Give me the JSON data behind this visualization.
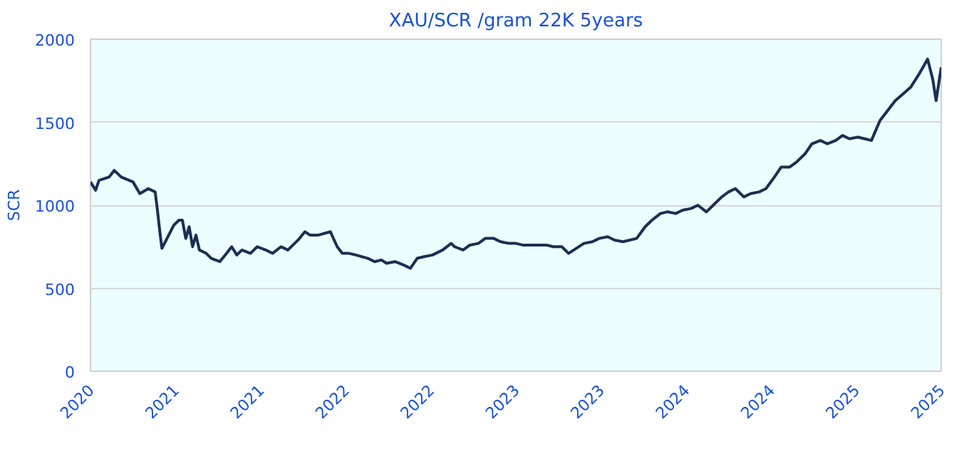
{
  "chart_data": {
    "type": "line",
    "title": "XAU/SCR /gram 22K 5years",
    "ylabel": "SCR",
    "x": [
      2020.2,
      2020.23,
      2020.25,
      2020.31,
      2020.34,
      2020.38,
      2020.45,
      2020.49,
      2020.54,
      2020.58,
      2020.59,
      2020.61,
      2020.62,
      2020.65,
      2020.69,
      2020.72,
      2020.74,
      2020.76,
      2020.78,
      2020.8,
      2020.82,
      2020.84,
      2020.88,
      2020.91,
      2020.96,
      2021.0,
      2021.03,
      2021.06,
      2021.09,
      2021.14,
      2021.18,
      2021.23,
      2021.27,
      2021.32,
      2021.36,
      2021.42,
      2021.46,
      2021.49,
      2021.54,
      2021.61,
      2021.65,
      2021.68,
      2021.72,
      2021.76,
      2021.83,
      2021.87,
      2021.91,
      2021.94,
      2021.99,
      2022.04,
      2022.08,
      2022.12,
      2022.16,
      2022.21,
      2022.27,
      2022.32,
      2022.34,
      2022.39,
      2022.43,
      2022.48,
      2022.52,
      2022.57,
      2022.61,
      2022.66,
      2022.7,
      2022.74,
      2022.79,
      2022.83,
      2022.88,
      2022.92,
      2022.97,
      2023.01,
      2023.1,
      2023.15,
      2023.19,
      2023.24,
      2023.28,
      2023.33,
      2023.41,
      2023.46,
      2023.5,
      2023.55,
      2023.59,
      2023.64,
      2023.68,
      2023.73,
      2023.77,
      2023.82,
      2023.86,
      2023.91,
      2023.95,
      2023.99,
      2024.04,
      2024.08,
      2024.13,
      2024.17,
      2024.22,
      2024.26,
      2024.31,
      2024.35,
      2024.4,
      2024.44,
      2024.49,
      2024.53,
      2024.58,
      2024.62,
      2024.66,
      2024.71,
      2024.75,
      2024.79,
      2024.84,
      2024.93,
      2025.02,
      2025.07,
      2025.12,
      2025.15,
      2025.17,
      2025.2
    ],
    "series": [
      {
        "color": "#1b2f52",
        "values": [
          1140,
          1090,
          1150,
          1170,
          1210,
          1170,
          1140,
          1070,
          1100,
          1080,
          1000,
          820,
          740,
          800,
          880,
          910,
          910,
          800,
          870,
          750,
          820,
          730,
          710,
          680,
          660,
          710,
          750,
          700,
          730,
          710,
          750,
          730,
          710,
          750,
          730,
          790,
          840,
          820,
          820,
          840,
          750,
          710,
          710,
          700,
          680,
          660,
          670,
          650,
          660,
          640,
          620,
          680,
          690,
          700,
          730,
          770,
          750,
          730,
          760,
          770,
          800,
          800,
          780,
          770,
          770,
          760,
          760,
          760,
          760,
          750,
          750,
          710,
          770,
          780,
          800,
          810,
          790,
          780,
          800,
          870,
          910,
          950,
          960,
          950,
          970,
          980,
          1000,
          960,
          1000,
          1050,
          1080,
          1100,
          1050,
          1070,
          1080,
          1100,
          1170,
          1230,
          1230,
          1260,
          1310,
          1370,
          1390,
          1370,
          1390,
          1420,
          1400,
          1410,
          1400,
          1390,
          1510,
          1630,
          1710,
          1790,
          1880,
          1760,
          1630,
          1830
        ]
      }
    ],
    "xlim": [
      2020.2,
      2025.2
    ],
    "xticks": [
      {
        "value": 2020.2,
        "label": "2020"
      },
      {
        "value": 2020.7,
        "label": "2021"
      },
      {
        "value": 2021.2,
        "label": "2021"
      },
      {
        "value": 2021.7,
        "label": "2022"
      },
      {
        "value": 2022.2,
        "label": "2022"
      },
      {
        "value": 2022.7,
        "label": "2023"
      },
      {
        "value": 2023.2,
        "label": "2023"
      },
      {
        "value": 2023.7,
        "label": "2024"
      },
      {
        "value": 2024.2,
        "label": "2024"
      },
      {
        "value": 2024.7,
        "label": "2025"
      },
      {
        "value": 2025.2,
        "label": "2025"
      }
    ],
    "ylim": [
      0,
      2000
    ],
    "yticks": [
      0,
      500,
      1000,
      1500,
      2000
    ],
    "grid": "y"
  }
}
